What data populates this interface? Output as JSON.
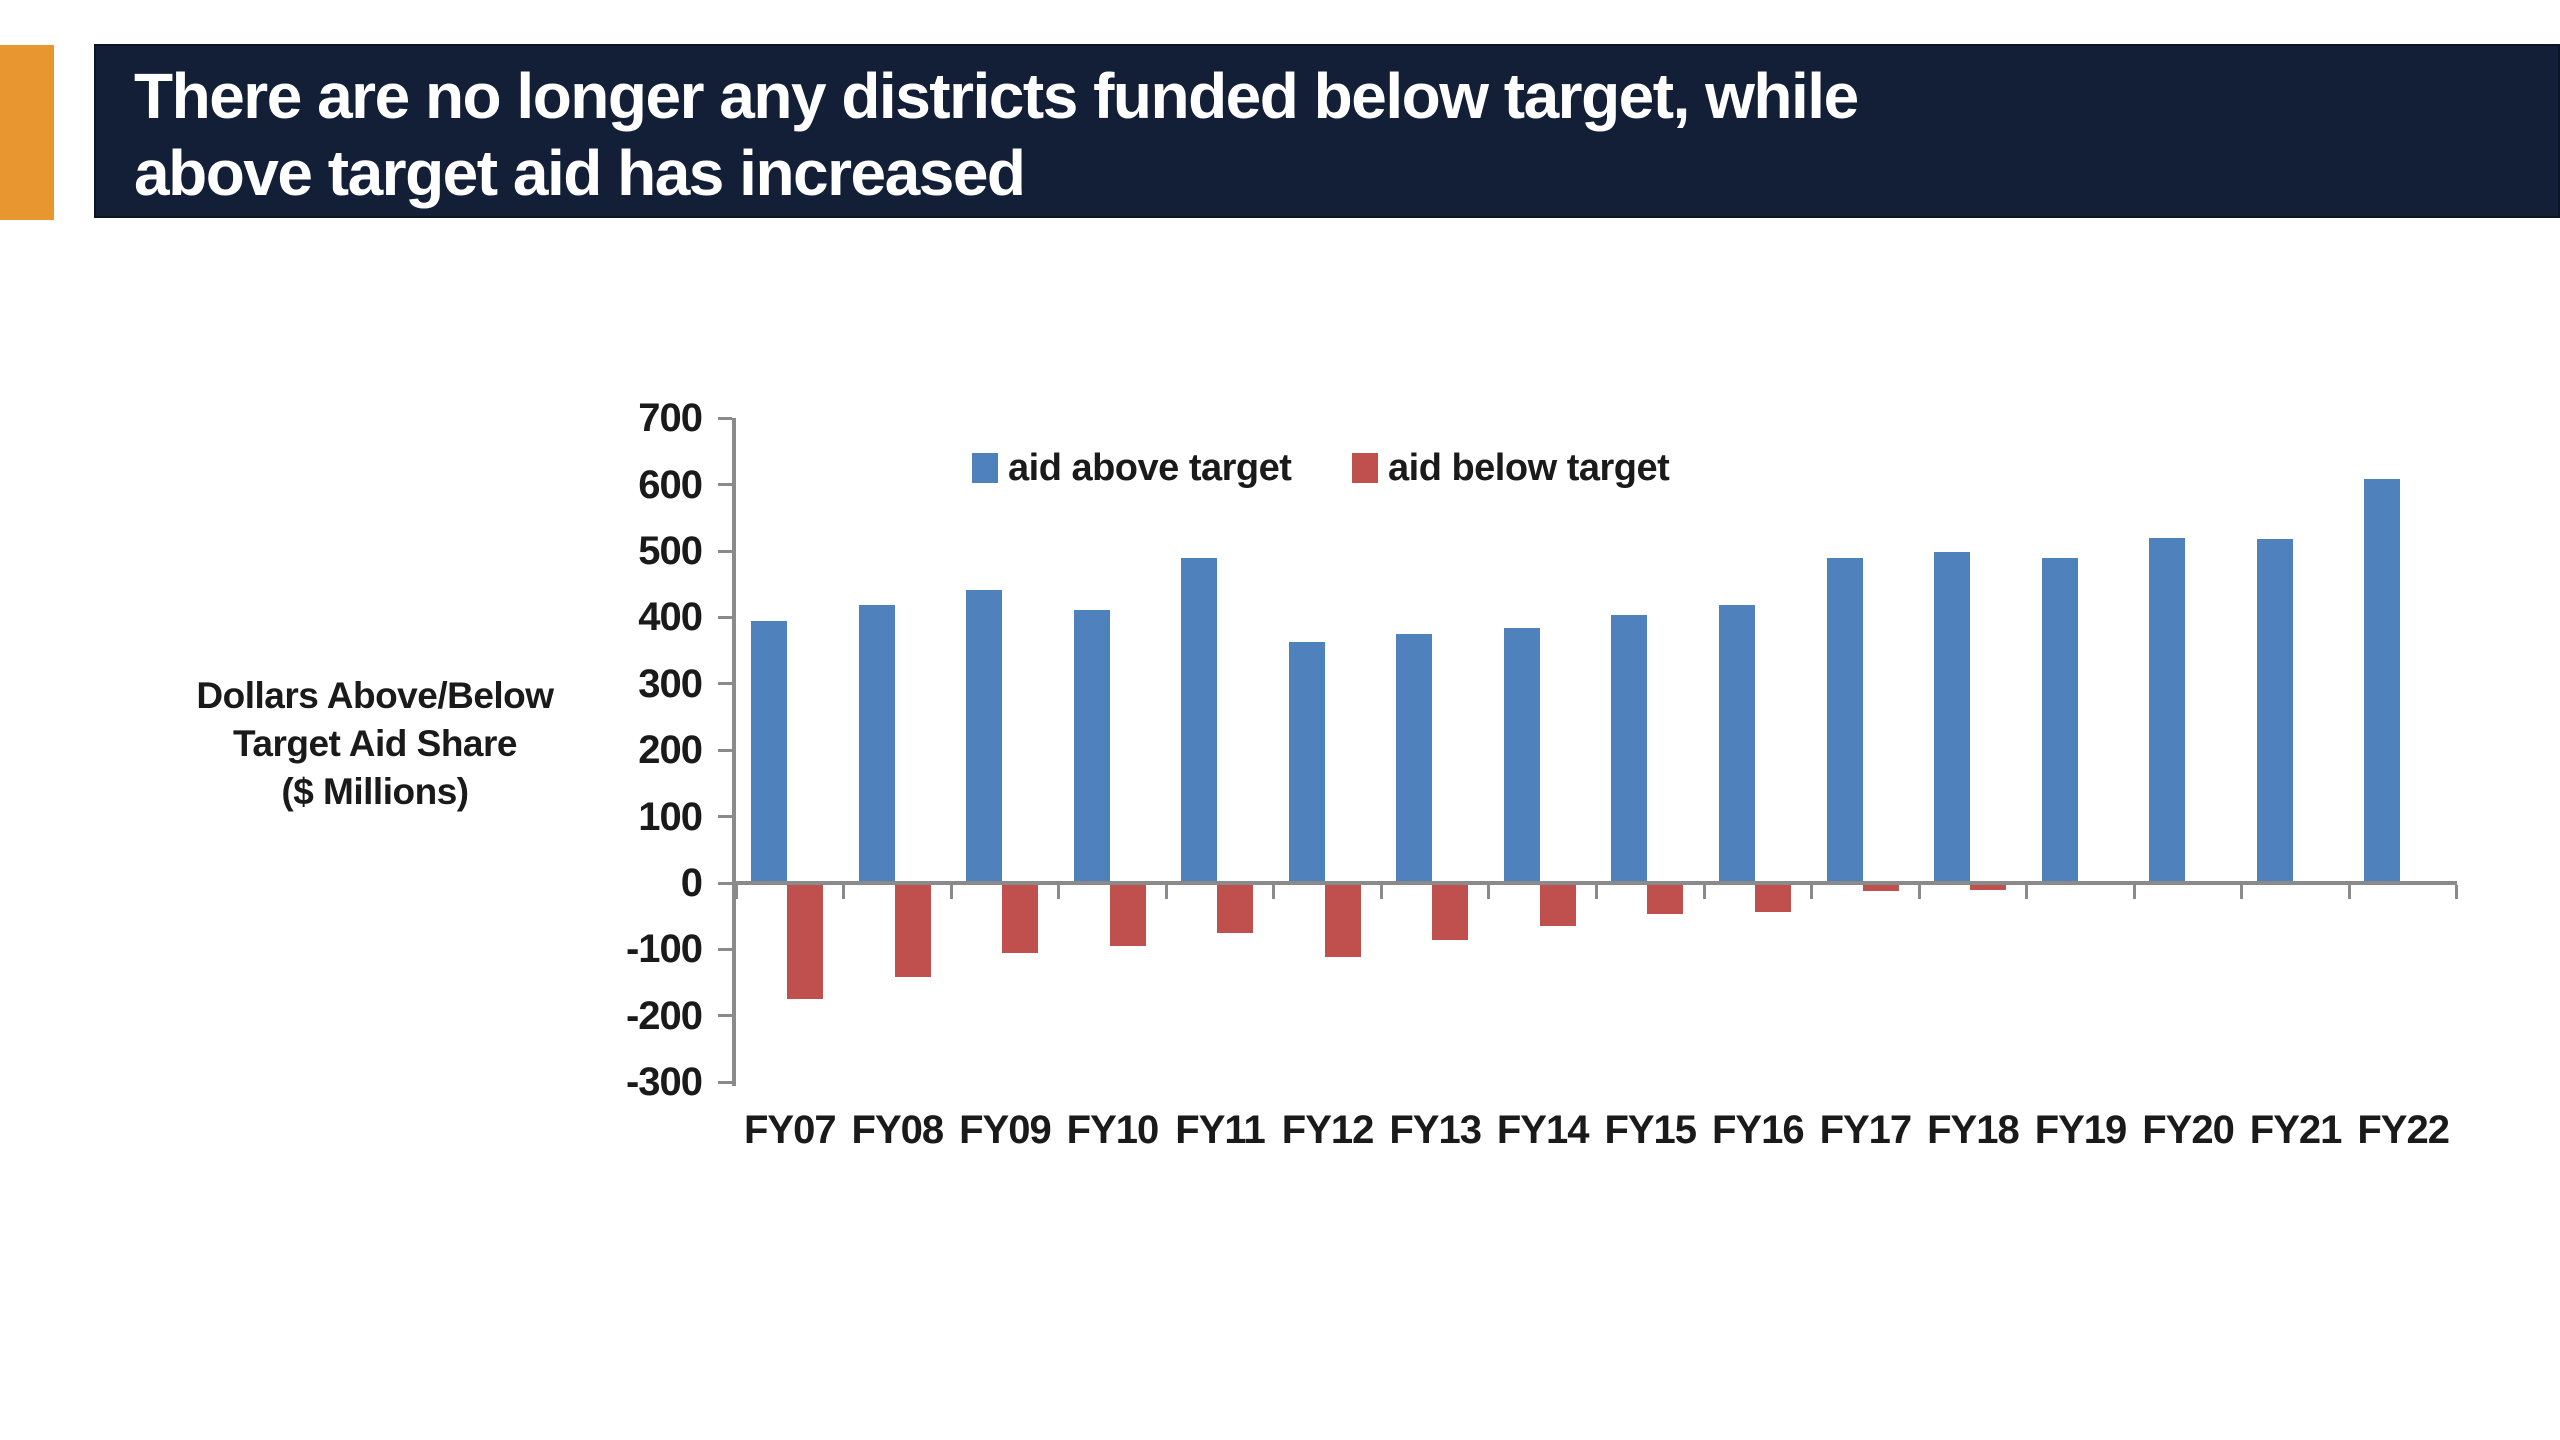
{
  "title": {
    "text": "There are no longer any districts funded below target, while\nabove target aid has increased"
  },
  "colors": {
    "header_bg": "#121F36",
    "accent_bar": "#E8962F",
    "aid_above": "#4F81BD",
    "aid_below": "#C0504D",
    "axis_line": "#8A8A8A",
    "chart_text": "#1A1A1A",
    "title_text": "#FFFFFF"
  },
  "chart_data": {
    "type": "bar",
    "categories": [
      "FY07",
      "FY08",
      "FY09",
      "FY10",
      "FY11",
      "FY12",
      "FY13",
      "FY14",
      "FY15",
      "FY16",
      "FY17",
      "FY18",
      "FY19",
      "FY20",
      "FY21",
      "FY22"
    ],
    "series": [
      {
        "name": "aid above target",
        "color": "#4F81BD",
        "values": [
          395,
          419,
          441,
          411,
          489,
          363,
          375,
          384,
          403,
          419,
          489,
          498,
          489,
          520,
          518,
          608
        ]
      },
      {
        "name": "aid below target",
        "color": "#C0504D",
        "values": [
          -175,
          -142,
          -105,
          -95,
          -75,
          -112,
          -86,
          -65,
          -47,
          -44,
          -12,
          -10,
          0,
          0,
          0,
          0
        ]
      }
    ],
    "title": "",
    "xlabel": "",
    "ylabel": "Dollars Above/Below Target Aid Share ($ Millions)",
    "ylabel_lines": [
      "Dollars Above/Below",
      "Target Aid Share",
      "($ Millions)"
    ],
    "ylim": [
      -300,
      700
    ],
    "ytick_step": 100,
    "grid": false,
    "legend_position": "top-inside"
  }
}
